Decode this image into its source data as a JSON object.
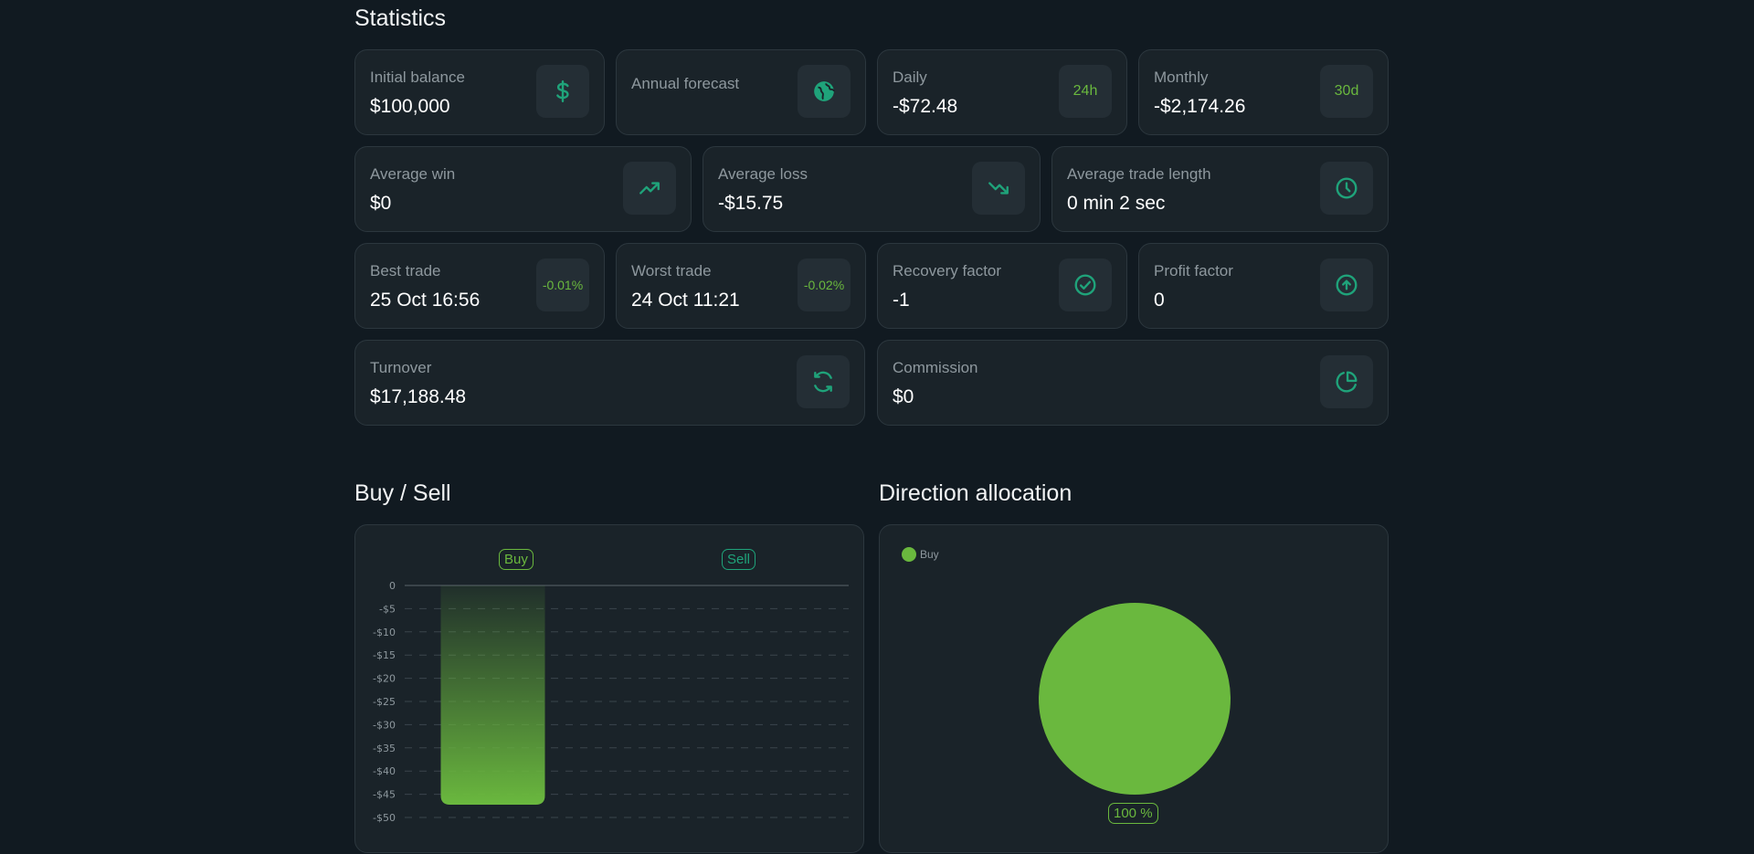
{
  "statistics": {
    "title": "Statistics",
    "row1": [
      {
        "label": "Initial balance",
        "value": "$100,000",
        "icon": "dollar-icon"
      },
      {
        "label": "Annual forecast",
        "value": "",
        "icon": "globe-icon"
      },
      {
        "label": "Daily",
        "value": "-$72.48",
        "badge": "24h"
      },
      {
        "label": "Monthly",
        "value": "-$2,174.26",
        "badge": "30d"
      }
    ],
    "row2": [
      {
        "label": "Average win",
        "value": "$0",
        "icon": "trend-up-icon"
      },
      {
        "label": "Average loss",
        "value": "-$15.75",
        "icon": "trend-down-icon"
      },
      {
        "label": "Average trade length",
        "value": "0 min 2 sec",
        "icon": "clock-icon"
      }
    ],
    "row3": [
      {
        "label": "Best trade",
        "value": "25 Oct 16:56",
        "badge": "-0.01%"
      },
      {
        "label": "Worst trade",
        "value": "24 Oct 11:21",
        "badge": "-0.02%"
      },
      {
        "label": "Recovery factor",
        "value": "-1",
        "icon": "check-circle-icon"
      },
      {
        "label": "Profit factor",
        "value": "0",
        "icon": "arrow-up-circle-icon"
      }
    ],
    "row4": [
      {
        "label": "Turnover",
        "value": "$17,188.48",
        "icon": "refresh-icon"
      },
      {
        "label": "Commission",
        "value": "$0",
        "icon": "pie-icon"
      }
    ]
  },
  "buy_sell": {
    "title": "Buy / Sell"
  },
  "direction": {
    "title": "Direction allocation",
    "legend_label": "Buy",
    "percent_label": "100 %"
  },
  "colors": {
    "accent": "#6ab83e",
    "teal": "#1fa37a",
    "background": "#111a21",
    "card": "#1a2329"
  },
  "chart_data": [
    {
      "type": "bar",
      "title": "Buy / Sell",
      "categories": [
        "Buy",
        "Sell"
      ],
      "values": [
        -47.25,
        0
      ],
      "ylim": [
        -50,
        0
      ],
      "yticks": [
        0,
        -5,
        -10,
        -15,
        -20,
        -25,
        -30,
        -35,
        -40,
        -45,
        -50
      ],
      "ytick_labels": [
        "0",
        "-$5",
        "-$10",
        "-$15",
        "-$20",
        "-$25",
        "-$30",
        "-$35",
        "-$40",
        "-$45",
        "-$50"
      ],
      "grid": true
    },
    {
      "type": "pie",
      "title": "Direction allocation",
      "labels": [
        "Buy"
      ],
      "values": [
        100
      ],
      "legend": "top-left"
    }
  ]
}
